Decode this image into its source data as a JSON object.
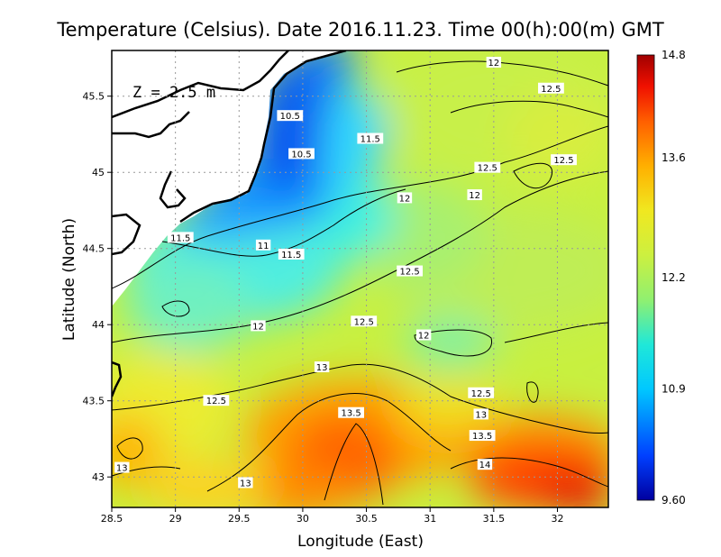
{
  "chart_data": {
    "type": "heatmap",
    "title": "Temperature (Celsius). Date 2016.11.23. Time 00(h):00(m) GMT",
    "xlabel": "Longitude (East)",
    "ylabel": "Latitude (North)",
    "xlim": [
      28.5,
      32.4
    ],
    "ylim": [
      42.8,
      45.8
    ],
    "x_ticks": [
      "28.5",
      "29",
      "29.5",
      "30",
      "30.5",
      "31",
      "31.5",
      "32"
    ],
    "y_ticks": [
      "43",
      "43.5",
      "44",
      "44.5",
      "45",
      "45.5"
    ],
    "grid": true,
    "annotation": "Z = 2.5 m",
    "colorbar": {
      "range": [
        9.6,
        14.8
      ],
      "tick_labels": [
        "14.8",
        "13.6",
        "12.2",
        "10.9",
        "9.60"
      ],
      "colors": [
        "#0000a0",
        "#0040ff",
        "#00c8ff",
        "#20e8d8",
        "#90f070",
        "#ccf040",
        "#f0e820",
        "#ffb000",
        "#ff6000",
        "#f01000",
        "#a00000"
      ]
    },
    "contour_labels": [
      {
        "text": "12",
        "x": 31.5,
        "y": 45.72
      },
      {
        "text": "12.5",
        "x": 31.95,
        "y": 45.55
      },
      {
        "text": "10.5",
        "x": 29.9,
        "y": 45.37
      },
      {
        "text": "11.5",
        "x": 30.53,
        "y": 45.22
      },
      {
        "text": "10.5",
        "x": 29.99,
        "y": 45.12
      },
      {
        "text": "12.5",
        "x": 31.45,
        "y": 45.03
      },
      {
        "text": "12.5",
        "x": 32.05,
        "y": 45.08
      },
      {
        "text": "12",
        "x": 31.35,
        "y": 44.85
      },
      {
        "text": "12",
        "x": 30.8,
        "y": 44.83
      },
      {
        "text": "11.5",
        "x": 29.04,
        "y": 44.57
      },
      {
        "text": "11",
        "x": 29.69,
        "y": 44.52
      },
      {
        "text": "11.5",
        "x": 29.91,
        "y": 44.46
      },
      {
        "text": "12.5",
        "x": 30.84,
        "y": 44.35
      },
      {
        "text": "12.5",
        "x": 30.48,
        "y": 44.02
      },
      {
        "text": "12",
        "x": 29.65,
        "y": 43.99
      },
      {
        "text": "12",
        "x": 30.95,
        "y": 43.93
      },
      {
        "text": "13",
        "x": 30.15,
        "y": 43.72
      },
      {
        "text": "12.5",
        "x": 29.32,
        "y": 43.5
      },
      {
        "text": "12.5",
        "x": 31.4,
        "y": 43.55
      },
      {
        "text": "13.5",
        "x": 30.38,
        "y": 43.42
      },
      {
        "text": "13",
        "x": 31.4,
        "y": 43.41
      },
      {
        "text": "13.5",
        "x": 31.41,
        "y": 43.27
      },
      {
        "text": "14",
        "x": 31.43,
        "y": 43.08
      },
      {
        "text": "13",
        "x": 28.58,
        "y": 43.06
      },
      {
        "text": "13",
        "x": 29.55,
        "y": 42.96
      }
    ]
  }
}
